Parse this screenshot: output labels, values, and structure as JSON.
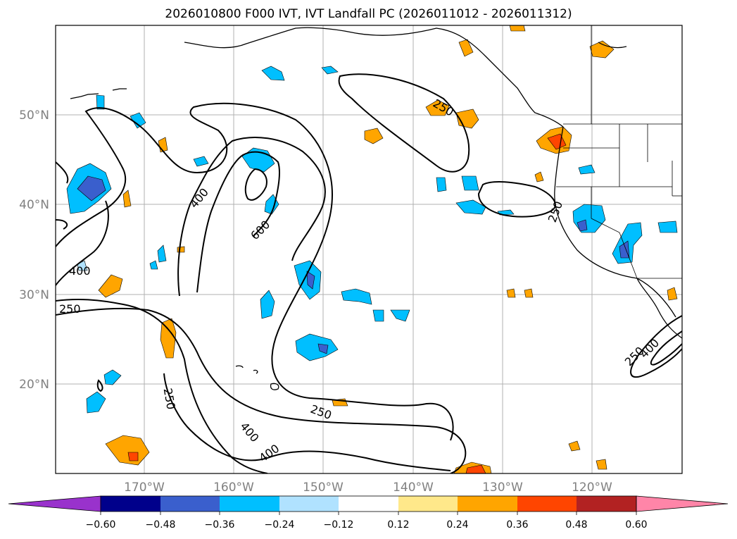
{
  "title": "2026010800 F000 IVT, IVT Landfall PC (2026011012 - 2026011312)",
  "lat_ticks": [
    "50°N",
    "40°N",
    "30°N",
    "20°N"
  ],
  "lon_ticks": [
    "170°W",
    "160°W",
    "150°W",
    "140°W",
    "130°W",
    "120°W"
  ],
  "colorbar": {
    "labels": [
      "−0.60",
      "−0.48",
      "−0.36",
      "−0.24",
      "−0.12",
      "0.12",
      "0.24",
      "0.36",
      "0.48",
      "0.60"
    ],
    "colors": [
      "#9932CC",
      "#00008B",
      "#3A5FCD",
      "#00BFFF",
      "#B0E2FF",
      "#FFFFFF",
      "#FFE88A",
      "#FFA500",
      "#FF4500",
      "#B22222",
      "#FF85A8"
    ]
  },
  "contour_labels": [
    "400",
    "250",
    "400",
    "600",
    "250",
    "250",
    "250",
    "400",
    "250",
    "400",
    "400",
    "250"
  ]
}
